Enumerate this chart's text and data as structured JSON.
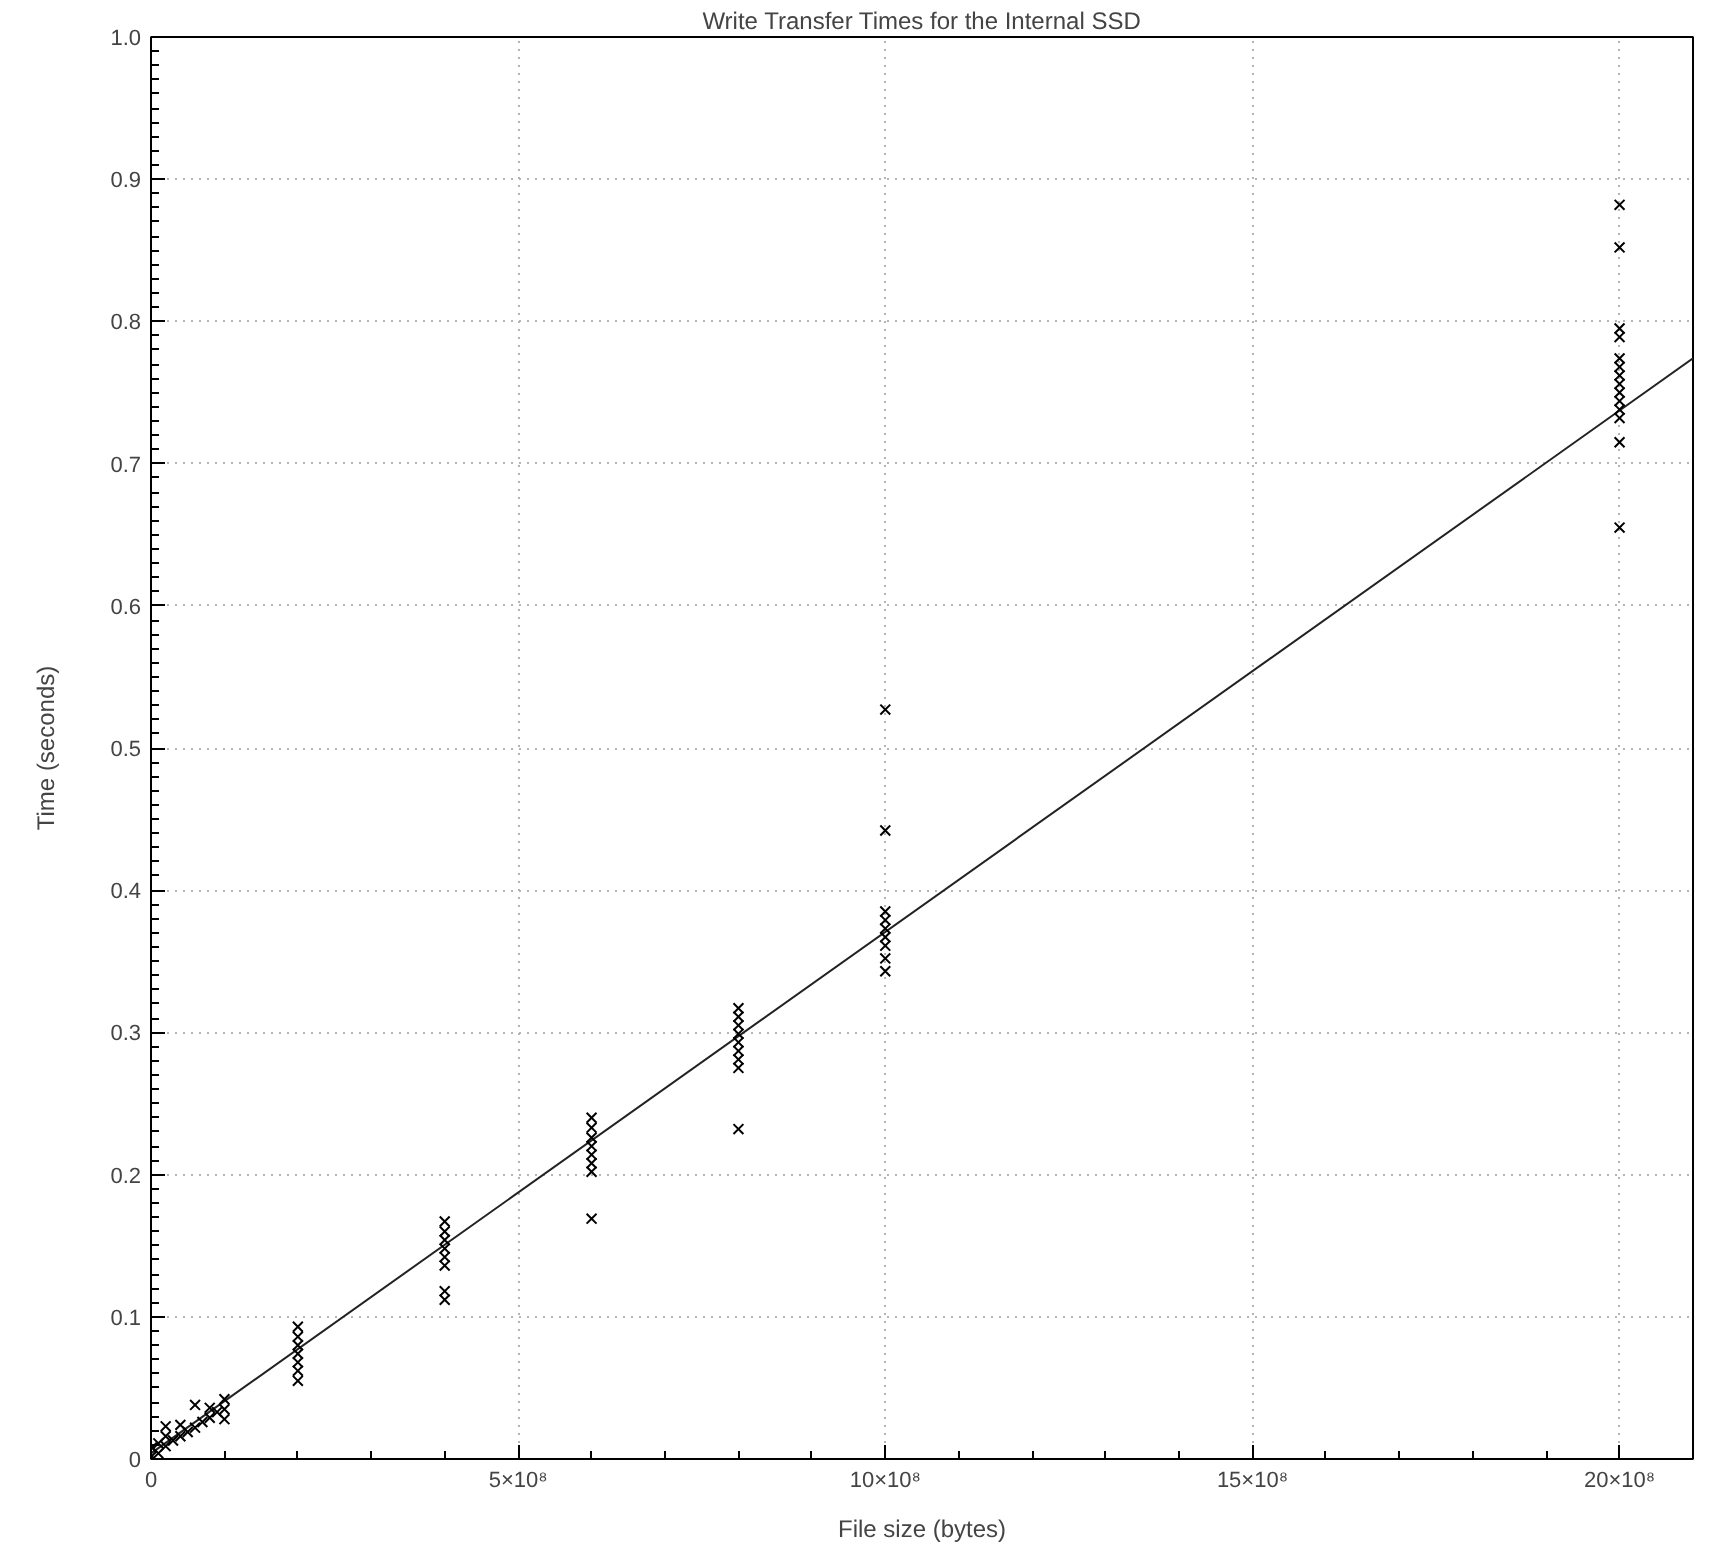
{
  "chart_data": {
    "type": "scatter",
    "title": "Write Transfer Times for the Internal SSD",
    "xlabel": "File size (bytes)",
    "ylabel": "Time (seconds)",
    "xlim": [
      0,
      2100000000
    ],
    "ylim": [
      0,
      1
    ],
    "xticks": [
      0,
      {
        "value": 500000000,
        "label": "5×10⁸"
      },
      {
        "value": 1000000000,
        "label": "10×10⁸"
      },
      {
        "value": 1500000000,
        "label": "15×10⁸"
      },
      {
        "value": 2000000000,
        "label": "20×10⁸"
      }
    ],
    "yticks": [
      0,
      0.1,
      0.2,
      0.3,
      0.4,
      0.5,
      0.6,
      0.7,
      0.8,
      0.9,
      {
        "value": 1,
        "label": "1.0"
      }
    ],
    "grid": true,
    "series": [
      {
        "type": "line",
        "color": "#222222",
        "x": [
          0,
          2100000000
        ],
        "values": [
          0.004,
          0.774
        ]
      },
      {
        "color": "#000000",
        "marker": "cross",
        "x": [
          1000000,
          1000000,
          10000000,
          10000000,
          20000000,
          20000000,
          20000000,
          30000000,
          40000000,
          40000000,
          50000000,
          60000000,
          60000000,
          70000000,
          80000000,
          80000000,
          90000000,
          100000000,
          100000000,
          100000000,
          200000000,
          200000000,
          200000000,
          200000000,
          200000000,
          200000000,
          200000000,
          400000000,
          400000000,
          400000000,
          400000000,
          400000000,
          400000000,
          400000000,
          400000000,
          600000000,
          600000000,
          600000000,
          600000000,
          600000000,
          600000000,
          600000000,
          600000000,
          800000000,
          800000000,
          800000000,
          800000000,
          800000000,
          800000000,
          800000000,
          800000000,
          800000000,
          1000000000,
          1000000000,
          1000000000,
          1000000000,
          1000000000,
          1000000000,
          1000000000,
          1000000000,
          1000000000,
          2000000000,
          2000000000,
          2000000000,
          2000000000,
          2000000000,
          2000000000,
          2000000000,
          2000000000,
          2000000000,
          2000000000,
          2000000000,
          2000000000,
          2000000000,
          2000000000
        ],
        "values": [
          0.002,
          0.008,
          0.004,
          0.011,
          0.009,
          0.016,
          0.023,
          0.013,
          0.016,
          0.024,
          0.019,
          0.022,
          0.038,
          0.026,
          0.029,
          0.036,
          0.033,
          0.028,
          0.035,
          0.042,
          0.055,
          0.062,
          0.068,
          0.074,
          0.08,
          0.086,
          0.093,
          0.112,
          0.118,
          0.136,
          0.142,
          0.148,
          0.154,
          0.16,
          0.167,
          0.169,
          0.202,
          0.208,
          0.214,
          0.22,
          0.226,
          0.233,
          0.24,
          0.232,
          0.275,
          0.281,
          0.287,
          0.293,
          0.299,
          0.305,
          0.311,
          0.317,
          0.343,
          0.352,
          0.361,
          0.367,
          0.373,
          0.379,
          0.385,
          0.442,
          0.527,
          0.655,
          0.715,
          0.732,
          0.738,
          0.744,
          0.75,
          0.756,
          0.762,
          0.768,
          0.774,
          0.789,
          0.795,
          0.852,
          0.882
        ]
      }
    ]
  }
}
